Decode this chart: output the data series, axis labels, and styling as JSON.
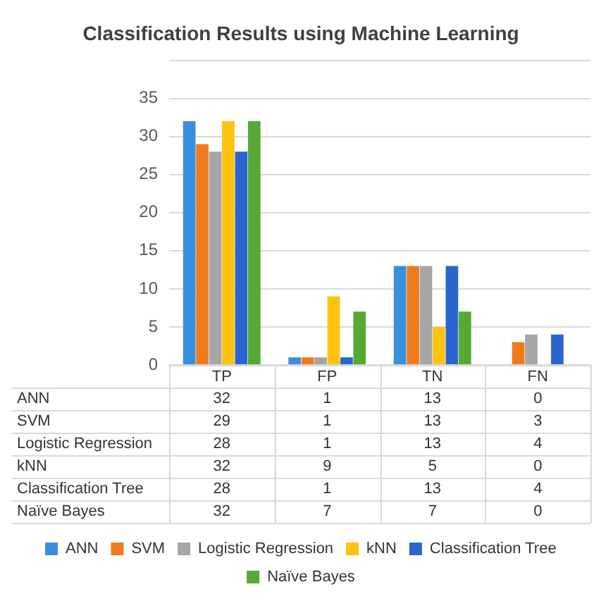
{
  "chart_data": {
    "type": "bar",
    "title": "Classification Results using Machine Learning",
    "categories": [
      "TP",
      "FP",
      "TN",
      "FN"
    ],
    "series": [
      {
        "name": "ANN",
        "color": "#3b8ede",
        "values": [
          32,
          1,
          13,
          0
        ]
      },
      {
        "name": "SVM",
        "color": "#f07b1d",
        "values": [
          29,
          1,
          13,
          3
        ]
      },
      {
        "name": "Logistic Regression",
        "color": "#a6a6a6",
        "values": [
          28,
          1,
          13,
          4
        ]
      },
      {
        "name": "kNN",
        "color": "#ffc20e",
        "values": [
          32,
          9,
          5,
          0
        ]
      },
      {
        "name": "Classification Tree",
        "color": "#2a66d0",
        "values": [
          28,
          1,
          13,
          4
        ]
      },
      {
        "name": "Naïve Bayes",
        "color": "#56a935",
        "values": [
          32,
          7,
          7,
          0
        ]
      }
    ],
    "ylim": [
      0,
      40
    ],
    "yticks": [
      0,
      5,
      10,
      15,
      20,
      25,
      30,
      35,
      {
        "value": 40,
        "label": null
      }
    ],
    "grid": "y",
    "legend": "bottom",
    "data_labels": true
  }
}
